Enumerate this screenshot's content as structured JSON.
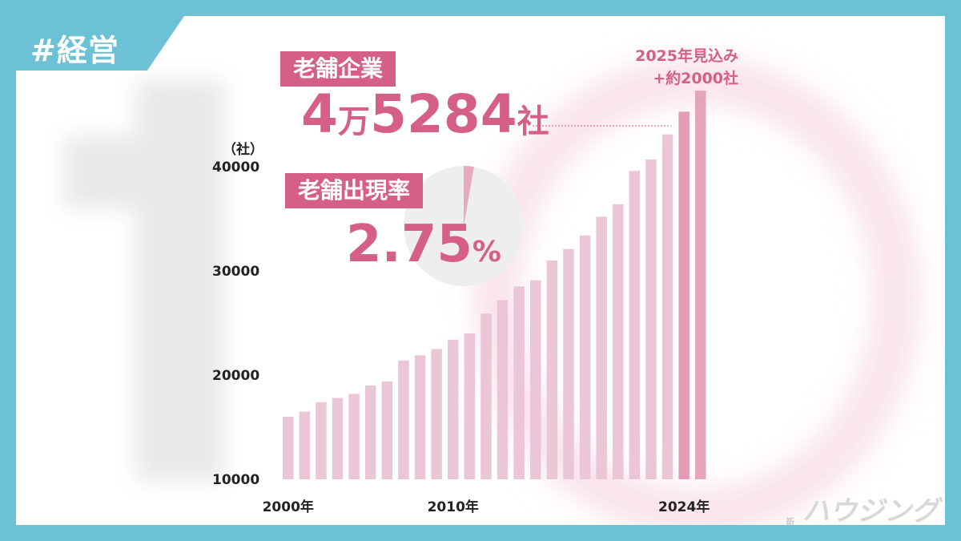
{
  "tag": "#経営",
  "highlight": {
    "label1": "老舗企業",
    "value1_a": "4",
    "value1_unit1": "万",
    "value1_b": "5284",
    "value1_unit2": "社",
    "label2": "老舗出現率",
    "value2": "2.75",
    "value2_unit": "%",
    "forecast_line1": "2025年見込み",
    "forecast_line2": "+約2000社"
  },
  "logo": {
    "side_text": "新建",
    "text": "ハウジング"
  },
  "colors": {
    "bar": "#ebc6d7",
    "bar_highlight": "#e39bb6",
    "accent": "#d65f86",
    "frame": "#6cc1d4"
  },
  "chart_data": {
    "type": "bar",
    "unit_label": "（社）",
    "y_ticks": [
      10000,
      20000,
      30000,
      40000
    ],
    "ylim": [
      10000,
      46000
    ],
    "x_tick_labels": [
      {
        "index": 0,
        "label": "2000年"
      },
      {
        "index": 10,
        "label": "2010年"
      },
      {
        "index": 24,
        "label": "2024年"
      }
    ],
    "x": [
      2000,
      2001,
      2002,
      2003,
      2004,
      2005,
      2006,
      2007,
      2008,
      2009,
      2010,
      2011,
      2012,
      2013,
      2014,
      2015,
      2016,
      2017,
      2018,
      2019,
      2020,
      2021,
      2022,
      2023,
      2024,
      2025
    ],
    "values": [
      16000,
      16500,
      17400,
      17800,
      18200,
      19000,
      19400,
      21400,
      21900,
      22500,
      23400,
      24000,
      25900,
      27200,
      28500,
      29100,
      31000,
      32100,
      33400,
      35200,
      36400,
      39600,
      40700,
      43100,
      45284,
      47300
    ],
    "highlight_index": 24,
    "forecast_index": 25
  }
}
